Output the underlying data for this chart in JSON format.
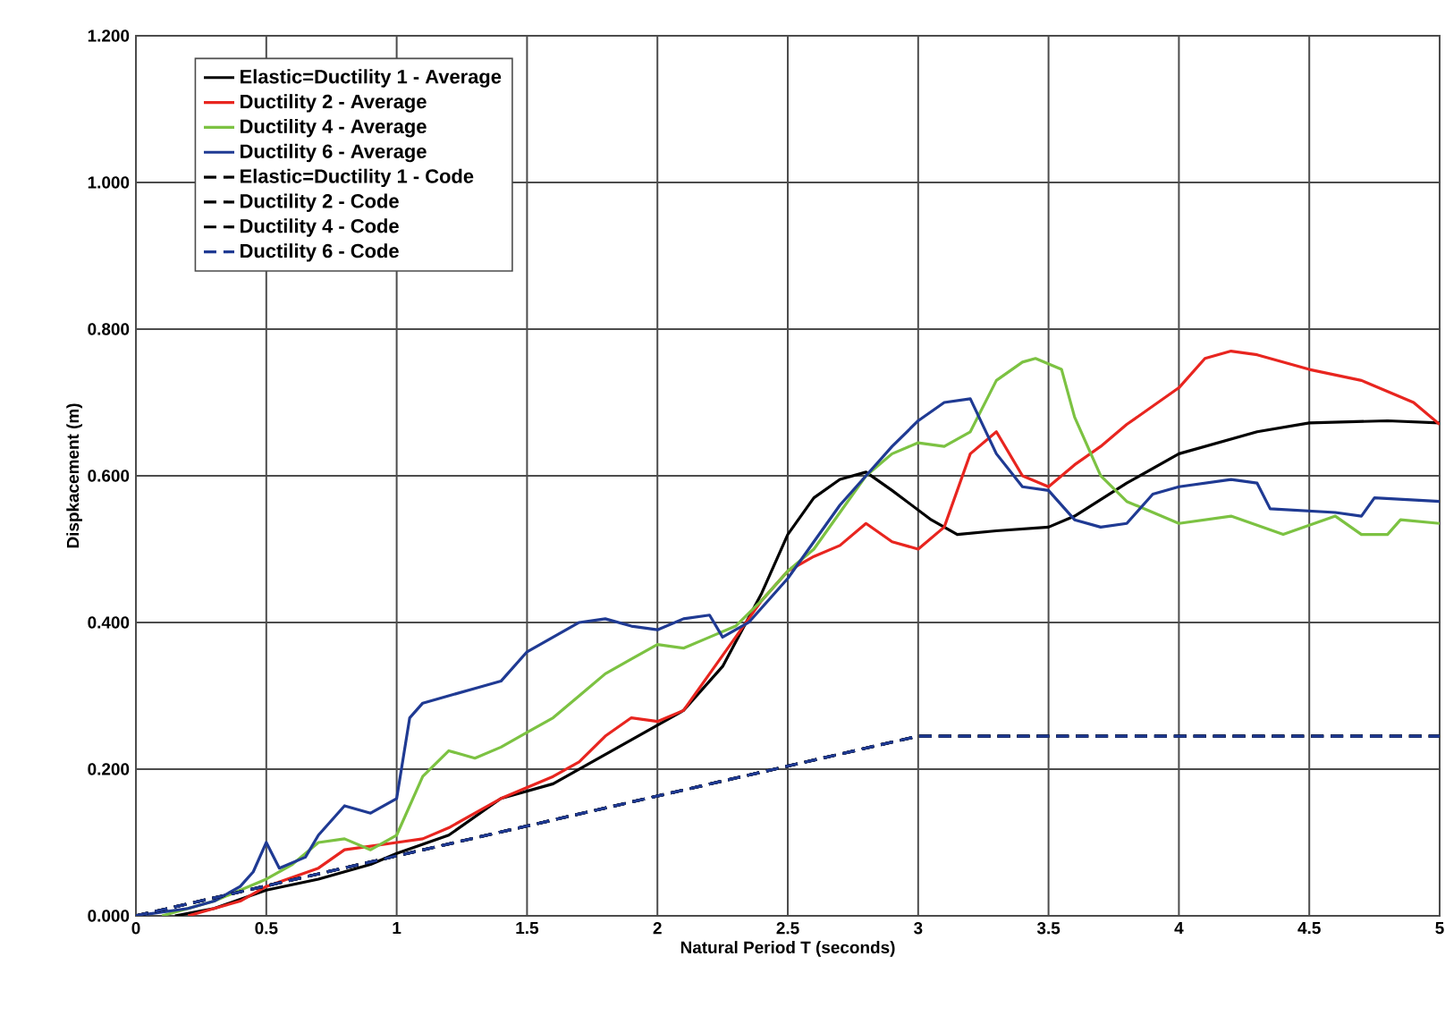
{
  "chart_data": {
    "type": "line",
    "xlabel": "Natural Period T (seconds)",
    "ylabel": "Dispkacement (m)",
    "xlim": [
      0,
      5
    ],
    "ylim": [
      0,
      1.2
    ],
    "xticks": [
      0,
      0.5,
      1,
      1.5,
      2,
      2.5,
      3,
      3.5,
      4,
      4.5,
      5
    ],
    "yticks": [
      {
        "value": 0,
        "label": "0.000"
      },
      {
        "value": 0.2,
        "label": "0.200"
      },
      {
        "value": 0.4,
        "label": "0.400"
      },
      {
        "value": 0.6,
        "label": "0.600"
      },
      {
        "value": 0.8,
        "label": "0.800"
      },
      {
        "value": 1.0,
        "label": "1.000"
      },
      {
        "value": 1.2,
        "label": "1.200"
      }
    ],
    "grid": true,
    "legend": "top left",
    "series": [
      {
        "name": "Elastic=Ductility 1 - Average",
        "color": "#000000",
        "line_style": "solid",
        "x": [
          0.15,
          0.3,
          0.5,
          0.7,
          0.9,
          1.0,
          1.2,
          1.4,
          1.6,
          1.8,
          2.0,
          2.1,
          2.25,
          2.4,
          2.5,
          2.6,
          2.7,
          2.8,
          2.9,
          3.05,
          3.15,
          3.3,
          3.5,
          3.6,
          3.8,
          4.0,
          4.3,
          4.5,
          4.8,
          5.0
        ],
        "values": [
          0,
          0.01,
          0.035,
          0.05,
          0.07,
          0.085,
          0.11,
          0.16,
          0.18,
          0.22,
          0.26,
          0.28,
          0.34,
          0.44,
          0.52,
          0.57,
          0.595,
          0.605,
          0.58,
          0.54,
          0.52,
          0.525,
          0.53,
          0.545,
          0.59,
          0.63,
          0.66,
          0.672,
          0.675,
          0.672
        ]
      },
      {
        "name": "Ductility 2 - Average",
        "color": "#e8251f",
        "line_style": "solid",
        "x": [
          0.2,
          0.4,
          0.5,
          0.7,
          0.8,
          0.9,
          1.0,
          1.1,
          1.2,
          1.4,
          1.5,
          1.6,
          1.7,
          1.8,
          1.9,
          2.0,
          2.1,
          2.2,
          2.3,
          2.4,
          2.5,
          2.6,
          2.7,
          2.8,
          2.9,
          3.0,
          3.1,
          3.2,
          3.3,
          3.4,
          3.5,
          3.6,
          3.7,
          3.8,
          4.0,
          4.1,
          4.2,
          4.3,
          4.5,
          4.7,
          4.9,
          5.0
        ],
        "values": [
          0,
          0.02,
          0.04,
          0.065,
          0.09,
          0.095,
          0.1,
          0.105,
          0.12,
          0.16,
          0.175,
          0.19,
          0.21,
          0.245,
          0.27,
          0.265,
          0.28,
          0.33,
          0.38,
          0.43,
          0.47,
          0.49,
          0.505,
          0.535,
          0.51,
          0.5,
          0.53,
          0.63,
          0.66,
          0.6,
          0.585,
          0.615,
          0.64,
          0.67,
          0.72,
          0.76,
          0.77,
          0.765,
          0.745,
          0.73,
          0.7,
          0.67
        ]
      },
      {
        "name": "Ductility 4 - Average",
        "color": "#7cc242",
        "line_style": "solid",
        "x": [
          0.1,
          0.3,
          0.5,
          0.6,
          0.7,
          0.8,
          0.9,
          1.0,
          1.1,
          1.2,
          1.3,
          1.4,
          1.5,
          1.6,
          1.7,
          1.8,
          1.9,
          2.0,
          2.1,
          2.2,
          2.3,
          2.4,
          2.5,
          2.6,
          2.7,
          2.8,
          2.9,
          3.0,
          3.1,
          3.2,
          3.3,
          3.4,
          3.45,
          3.55,
          3.6,
          3.7,
          3.8,
          4.0,
          4.2,
          4.4,
          4.6,
          4.7,
          4.8,
          4.85,
          5.0
        ],
        "values": [
          0,
          0.02,
          0.05,
          0.07,
          0.1,
          0.105,
          0.09,
          0.11,
          0.19,
          0.225,
          0.215,
          0.23,
          0.25,
          0.27,
          0.3,
          0.33,
          0.35,
          0.37,
          0.365,
          0.38,
          0.395,
          0.43,
          0.47,
          0.5,
          0.55,
          0.6,
          0.63,
          0.645,
          0.64,
          0.66,
          0.73,
          0.755,
          0.76,
          0.745,
          0.68,
          0.6,
          0.565,
          0.535,
          0.545,
          0.52,
          0.545,
          0.52,
          0.52,
          0.54,
          0.535
        ]
      },
      {
        "name": "Ductility 6 - Average",
        "color": "#1f3a93",
        "line_style": "solid",
        "x": [
          0,
          0.2,
          0.3,
          0.4,
          0.45,
          0.5,
          0.55,
          0.65,
          0.7,
          0.8,
          0.9,
          1.0,
          1.05,
          1.1,
          1.3,
          1.4,
          1.5,
          1.6,
          1.7,
          1.8,
          1.9,
          2.0,
          2.1,
          2.2,
          2.25,
          2.35,
          2.5,
          2.7,
          2.9,
          3.0,
          3.1,
          3.2,
          3.3,
          3.4,
          3.5,
          3.6,
          3.7,
          3.8,
          3.9,
          4.0,
          4.2,
          4.3,
          4.35,
          4.6,
          4.7,
          4.75,
          5.0
        ],
        "values": [
          0,
          0.01,
          0.02,
          0.04,
          0.06,
          0.1,
          0.065,
          0.08,
          0.11,
          0.15,
          0.14,
          0.16,
          0.27,
          0.29,
          0.31,
          0.32,
          0.36,
          0.38,
          0.4,
          0.405,
          0.395,
          0.39,
          0.405,
          0.41,
          0.38,
          0.4,
          0.46,
          0.56,
          0.64,
          0.675,
          0.7,
          0.705,
          0.63,
          0.585,
          0.58,
          0.54,
          0.53,
          0.535,
          0.575,
          0.585,
          0.595,
          0.59,
          0.555,
          0.55,
          0.545,
          0.57,
          0.565
        ]
      },
      {
        "name": "Elastic=Ductility 1 - Code",
        "color": "#000000",
        "line_style": "dashed",
        "x": [
          0,
          3,
          5
        ],
        "values": [
          0,
          0.245,
          0.245
        ]
      },
      {
        "name": "Ductility 2 - Code",
        "color": "#000000",
        "line_style": "dashed",
        "x": [
          0,
          3,
          5
        ],
        "values": [
          0,
          0.245,
          0.245
        ]
      },
      {
        "name": "Ductility 4 - Code",
        "color": "#000000",
        "line_style": "dashed",
        "x": [
          0,
          3,
          5
        ],
        "values": [
          0,
          0.245,
          0.245
        ]
      },
      {
        "name": "Ductility 6 - Code",
        "color": "#1f3a93",
        "line_style": "dashed",
        "x": [
          0,
          3,
          5
        ],
        "values": [
          0,
          0.245,
          0.245
        ]
      }
    ]
  }
}
